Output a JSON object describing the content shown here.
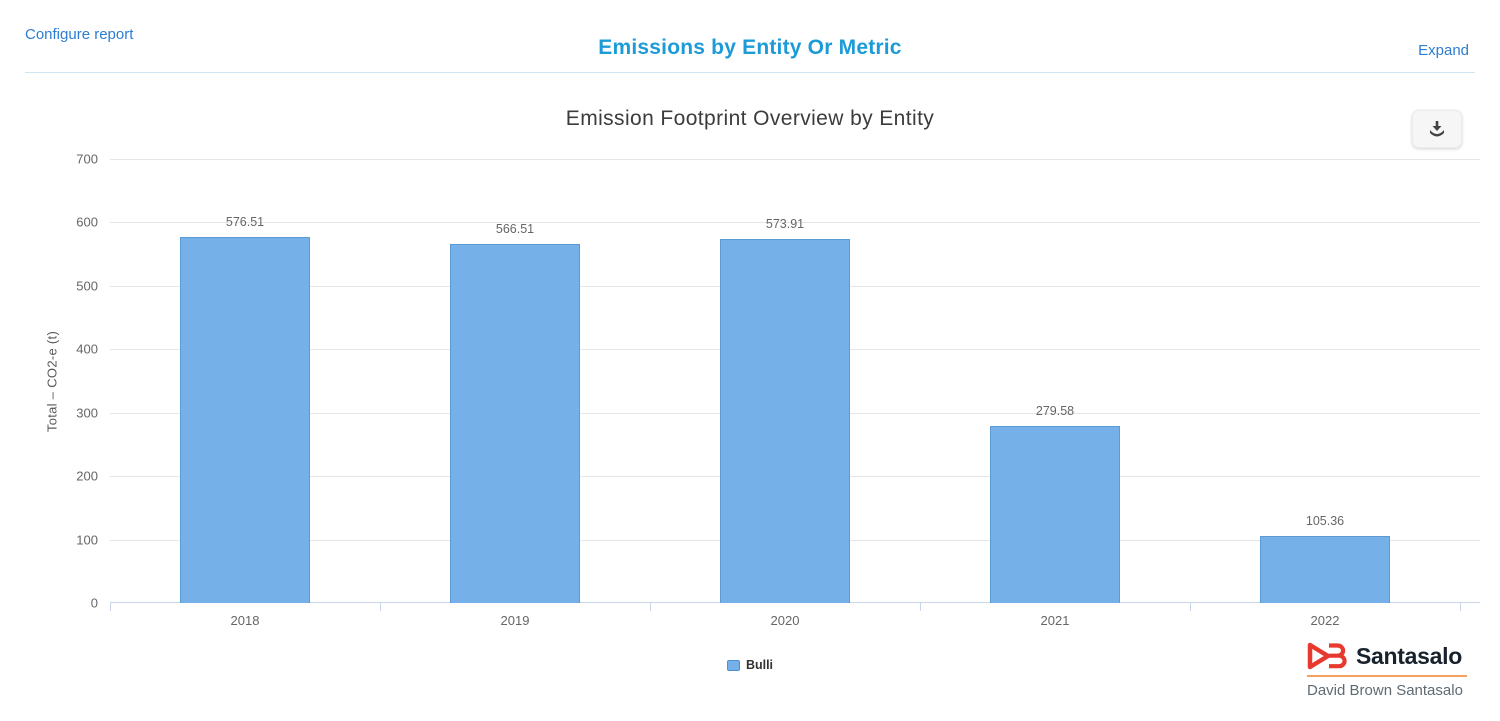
{
  "header": {
    "configure_label": "Configure report",
    "title": "Emissions by Entity Or Metric",
    "expand_label": "Expand"
  },
  "chart_data": {
    "type": "bar",
    "title": "Emission Footprint Overview by Entity",
    "categories": [
      "2018",
      "2019",
      "2020",
      "2021",
      "2022"
    ],
    "series": [
      {
        "name": "Bulli",
        "values": [
          576.51,
          566.51,
          573.91,
          279.58,
          105.36
        ],
        "color": "#76b0e8"
      }
    ],
    "xlabel": "",
    "ylabel": "Total – CO2-e (t)",
    "ylim": [
      0,
      700
    ],
    "ytick_step": 100,
    "grid": true,
    "legend_position": "bottom",
    "data_labels": true
  },
  "legend": {
    "items": [
      {
        "label": "Bulli",
        "color": "#76b0e8"
      }
    ]
  },
  "toolbar": {
    "download_tooltip": "Download"
  },
  "branding": {
    "logo_text": "Santasalo",
    "logo_subtext": "David Brown Santasalo"
  }
}
